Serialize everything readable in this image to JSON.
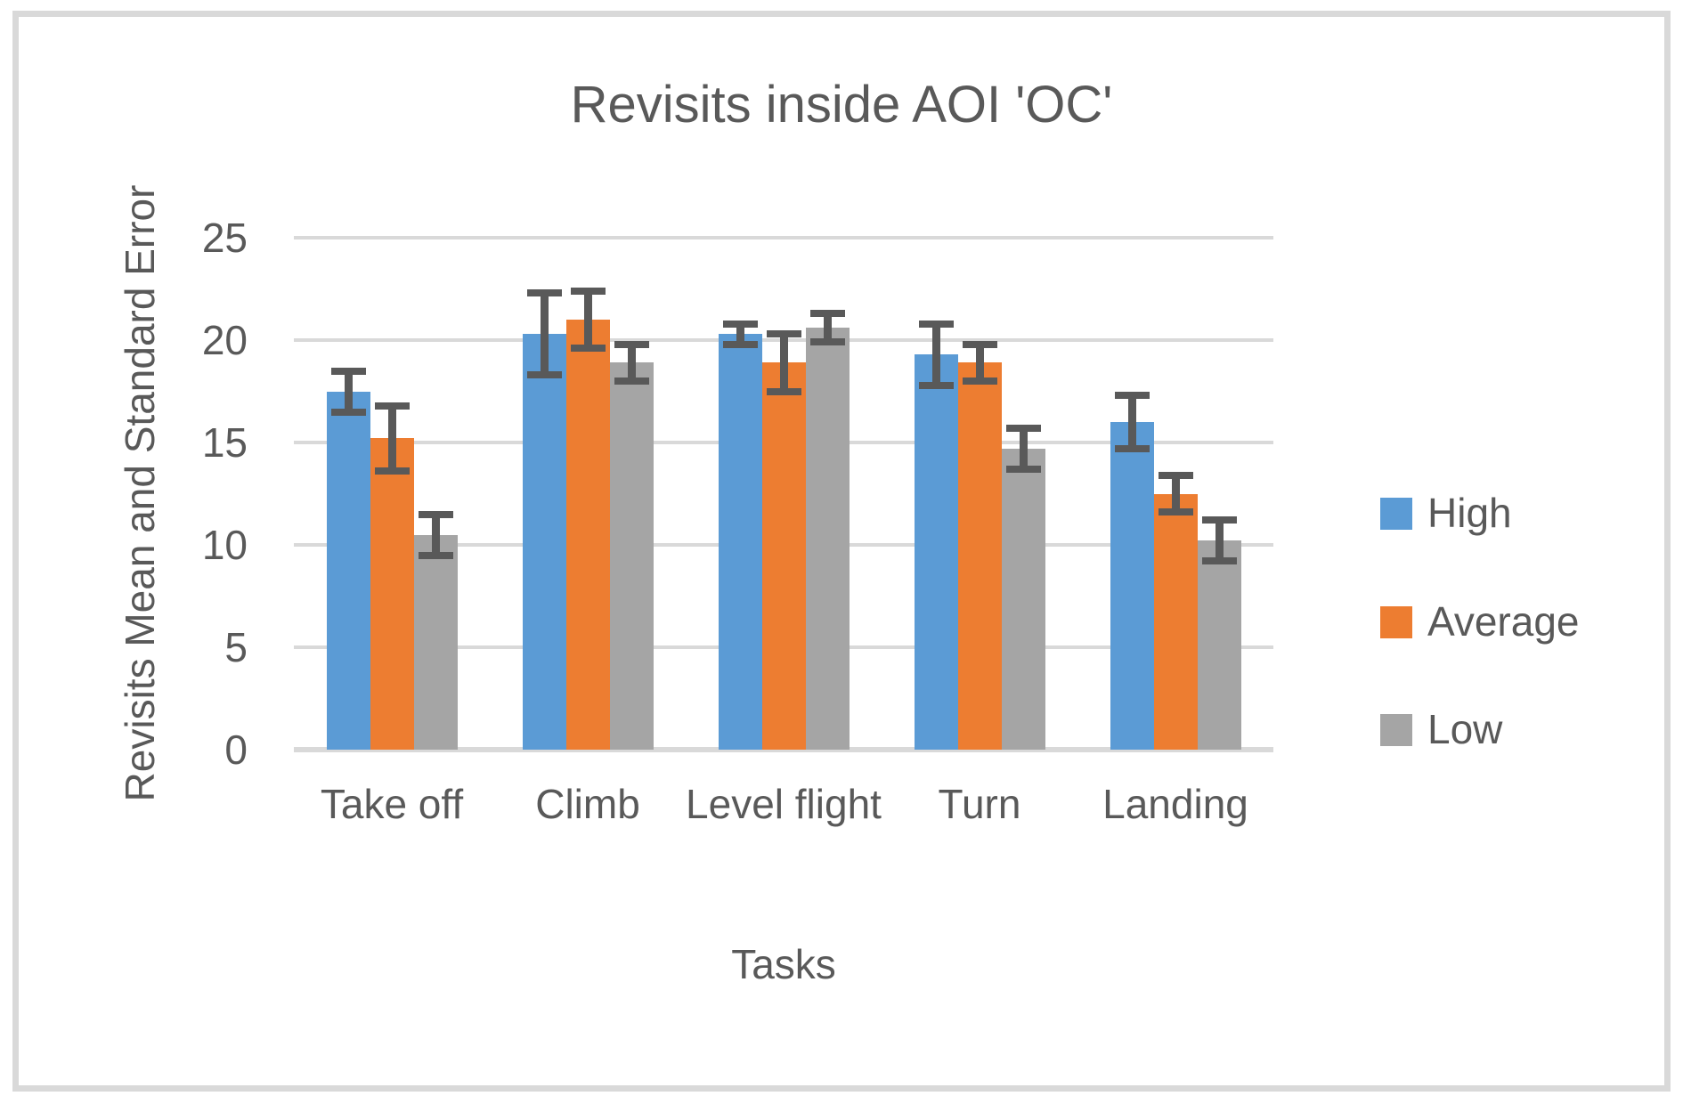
{
  "chart_data": {
    "type": "bar",
    "title": "Revisits inside AOI 'OC'",
    "xlabel": "Tasks",
    "ylabel": "Revisits Mean and Standard Error",
    "categories": [
      "Take off",
      "Climb",
      "Level flight",
      "Turn",
      "Landing"
    ],
    "series": [
      {
        "name": "High",
        "color": "#5B9BD5",
        "values": [
          17.5,
          20.3,
          20.3,
          19.3,
          16.0
        ],
        "errors": [
          1.0,
          2.0,
          0.5,
          1.5,
          1.3
        ]
      },
      {
        "name": "Average",
        "color": "#ED7D31",
        "values": [
          15.2,
          21.0,
          18.9,
          18.9,
          12.5
        ],
        "errors": [
          1.6,
          1.4,
          1.4,
          0.9,
          0.9
        ]
      },
      {
        "name": "Low",
        "color": "#A5A5A5",
        "values": [
          10.5,
          18.9,
          20.6,
          14.7,
          10.2
        ],
        "errors": [
          1.0,
          0.9,
          0.7,
          1.0,
          1.0
        ]
      }
    ],
    "ylim": [
      0,
      25
    ],
    "yticks": [
      "0",
      "5",
      "10",
      "15",
      "20",
      "25"
    ],
    "grid": true,
    "legend_position": "right",
    "error_bars": true,
    "colors": {
      "error_bar": "#595959",
      "gridline": "#d9d9d9",
      "axis_line": "#d9d9d9",
      "text": "#595959",
      "frame_border": "#d9d9d9"
    }
  }
}
